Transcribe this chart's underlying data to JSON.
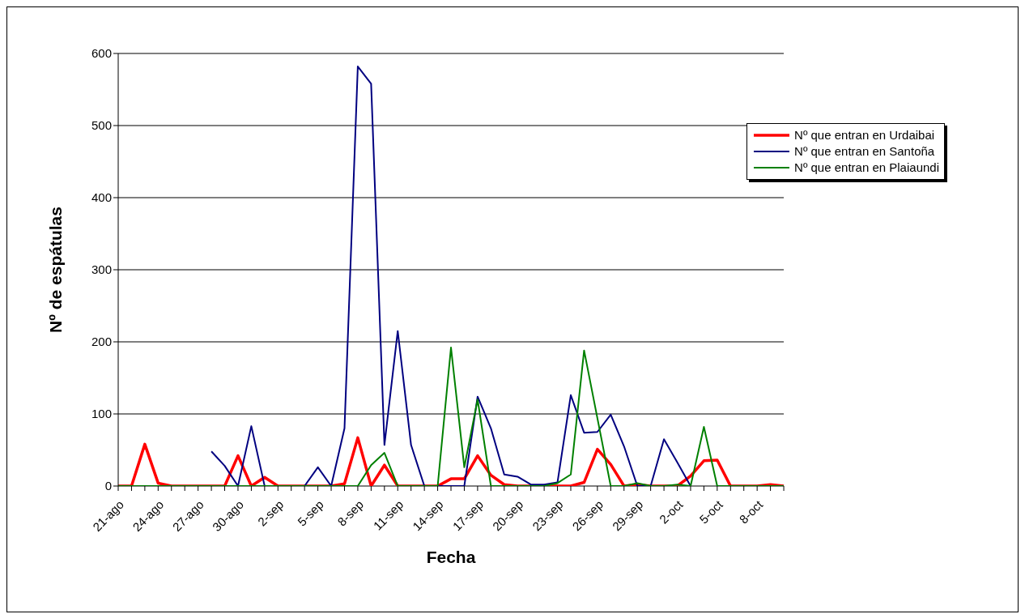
{
  "chart_data": {
    "type": "line",
    "xlabel": "Fecha",
    "ylabel": "Nº de espátulas",
    "categories": [
      "21-ago",
      null,
      null,
      "24-ago",
      null,
      null,
      "27-ago",
      null,
      null,
      "30-ago",
      null,
      null,
      "2-sep",
      null,
      null,
      "5-sep",
      null,
      null,
      "8-sep",
      null,
      null,
      "11-sep",
      null,
      null,
      "14-sep",
      null,
      null,
      "17-sep",
      null,
      null,
      "20-sep",
      null,
      null,
      "23-sep",
      null,
      null,
      "26-sep",
      null,
      null,
      "29-sep",
      null,
      null,
      "2-oct",
      null,
      null,
      "5-oct",
      null,
      null,
      "8-oct",
      null,
      null
    ],
    "series": [
      {
        "name": "Nº que entran en Urdaibai",
        "color": "#ff0000",
        "values": [
          0,
          0,
          58,
          4,
          0,
          0,
          0,
          0,
          0,
          42,
          0,
          12,
          0,
          0,
          0,
          0,
          0,
          3,
          67,
          0,
          29,
          0,
          0,
          0,
          0,
          10,
          10,
          42,
          15,
          2,
          0,
          0,
          0,
          0,
          0,
          5,
          51,
          30,
          0,
          2,
          0,
          0,
          0,
          14,
          35,
          36,
          0,
          0,
          0,
          2,
          0
        ]
      },
      {
        "name": "Nº que entran en Santoña",
        "color": "#000080",
        "values": [
          null,
          null,
          null,
          null,
          null,
          null,
          null,
          48,
          28,
          0,
          83,
          0,
          0,
          0,
          0,
          26,
          0,
          80,
          582,
          558,
          57,
          215,
          57,
          0,
          0,
          0,
          0,
          124,
          80,
          16,
          13,
          2,
          2,
          5,
          126,
          74,
          75,
          99,
          55,
          0,
          0,
          65,
          33,
          0,
          null,
          null,
          null,
          null,
          null,
          null,
          null
        ]
      },
      {
        "name": "Nº que entran en Plaiaundi",
        "color": "#008000",
        "values": [
          0,
          0,
          0,
          0,
          0,
          0,
          0,
          0,
          0,
          0,
          0,
          0,
          0,
          0,
          0,
          0,
          0,
          0,
          0,
          29,
          46,
          0,
          0,
          0,
          0,
          192,
          26,
          120,
          0,
          0,
          0,
          0,
          0,
          4,
          16,
          188,
          94,
          0,
          0,
          4,
          0,
          0,
          2,
          0,
          82,
          0,
          0,
          0,
          0,
          0,
          0
        ]
      }
    ],
    "ylim": [
      0,
      600
    ],
    "yticks": [
      0,
      100,
      200,
      300,
      400,
      500,
      600
    ],
    "grid": "y",
    "legend": "top right",
    "marker": "none",
    "line_style": "solid"
  }
}
